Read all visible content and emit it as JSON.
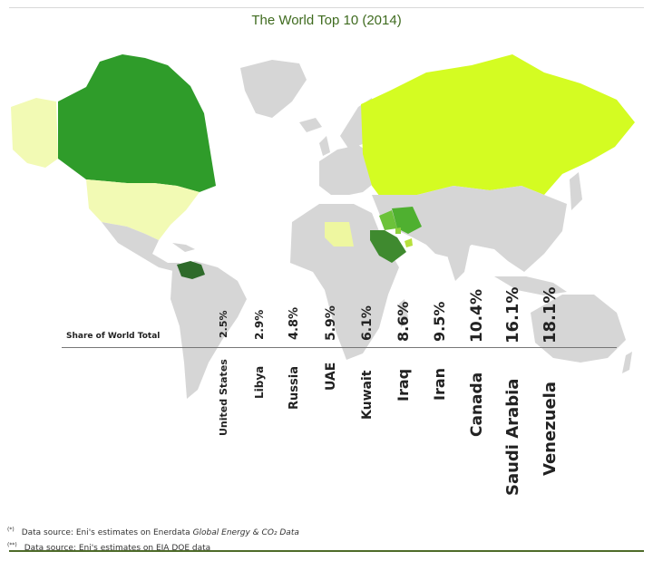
{
  "title": "The World Top 10 (2014)",
  "legend_label": "Share of World Total",
  "colors": {
    "land": "#d6d6d6",
    "venezuela": "#2e6a2a",
    "saudi_arabia": "#3f8a2f",
    "canada": "#2f9c2a",
    "iran": "#4fb030",
    "iraq": "#6cc23a",
    "kuwait": "#8ed23d",
    "uae": "#b7e03c",
    "russia": "#d4fc22",
    "libya": "#eef7a0",
    "united_states": "#f2fab4"
  },
  "rankings": [
    {
      "country": "United States",
      "share": "2.5%"
    },
    {
      "country": "Libya",
      "share": "2.9%"
    },
    {
      "country": "Russia",
      "share": "4.8%"
    },
    {
      "country": "UAE",
      "share": "5.9%"
    },
    {
      "country": "Kuwait",
      "share": "6.1%"
    },
    {
      "country": "Iraq",
      "share": "8.6%"
    },
    {
      "country": "Iran",
      "share": "9.5%"
    },
    {
      "country": "Canada",
      "share": "10.4%"
    },
    {
      "country": "Saudi Arabia",
      "share": "16.1%"
    },
    {
      "country": "Venezuela",
      "share": "18.1%"
    }
  ],
  "notes": [
    {
      "mark": "(*)",
      "text": "Data source: Eni's estimates on Enerdata ",
      "italic": "Global Energy & CO₂ Data"
    },
    {
      "mark": "(**)",
      "text": "Data source: Eni's estimates on EIA DOE data",
      "italic": ""
    }
  ]
}
